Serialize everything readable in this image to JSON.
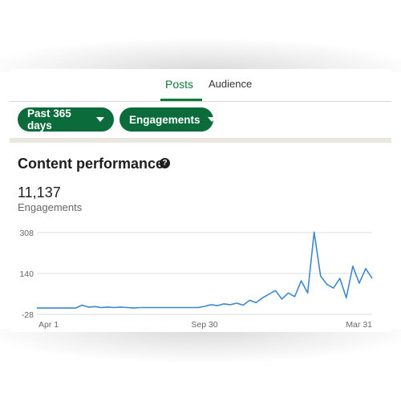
{
  "tabs": [
    {
      "label": "Posts",
      "active": true
    },
    {
      "label": "Audience",
      "active": false
    }
  ],
  "filters": {
    "date_range": "Past 365 days",
    "metric": "Engagements"
  },
  "section": {
    "title": "Content performance",
    "help_icon": "question-circle-icon"
  },
  "summary": {
    "value": "11,137",
    "label": "Engagements"
  },
  "colors": {
    "accent": "#0b6b3a",
    "line": "#3b87d0",
    "grid": "#dddddd"
  },
  "chart_data": {
    "type": "line",
    "title": "",
    "xlabel": "",
    "ylabel": "",
    "y_ticks": [
      "308",
      "140",
      "-28"
    ],
    "ylim": [
      -28,
      308
    ],
    "x_ticks": [
      "Apr 1",
      "Sep 30",
      "Mar 31"
    ],
    "grid": true,
    "x": [
      "Apr 1",
      "Apr 8",
      "Apr 15",
      "Apr 22",
      "Apr 29",
      "May 6",
      "May 13",
      "May 20",
      "May 27",
      "Jun 3",
      "Jun 10",
      "Jun 17",
      "Jun 24",
      "Jul 1",
      "Jul 8",
      "Jul 15",
      "Jul 22",
      "Jul 29",
      "Aug 5",
      "Aug 12",
      "Aug 19",
      "Aug 26",
      "Sep 2",
      "Sep 9",
      "Sep 16",
      "Sep 23",
      "Sep 30",
      "Oct 7",
      "Oct 14",
      "Oct 21",
      "Oct 28",
      "Nov 4",
      "Nov 11",
      "Nov 18",
      "Nov 25",
      "Dec 2",
      "Dec 9",
      "Dec 16",
      "Dec 23",
      "Dec 30",
      "Jan 6",
      "Jan 13",
      "Jan 20",
      "Jan 27",
      "Feb 3",
      "Feb 10",
      "Feb 17",
      "Feb 24",
      "Mar 3",
      "Mar 10",
      "Mar 17",
      "Mar 24",
      "Mar 31"
    ],
    "series": [
      {
        "values": [
          -2,
          -2,
          -2,
          -2,
          -2,
          -2,
          -2,
          10,
          2,
          4,
          0,
          2,
          0,
          2,
          0,
          -2,
          0,
          0,
          0,
          0,
          0,
          0,
          0,
          0,
          0,
          0,
          5,
          12,
          8,
          15,
          12,
          18,
          10,
          30,
          20,
          40,
          55,
          70,
          35,
          60,
          45,
          110,
          60,
          310,
          130,
          95,
          80,
          120,
          40,
          170,
          100,
          160,
          120
        ]
      }
    ]
  }
}
